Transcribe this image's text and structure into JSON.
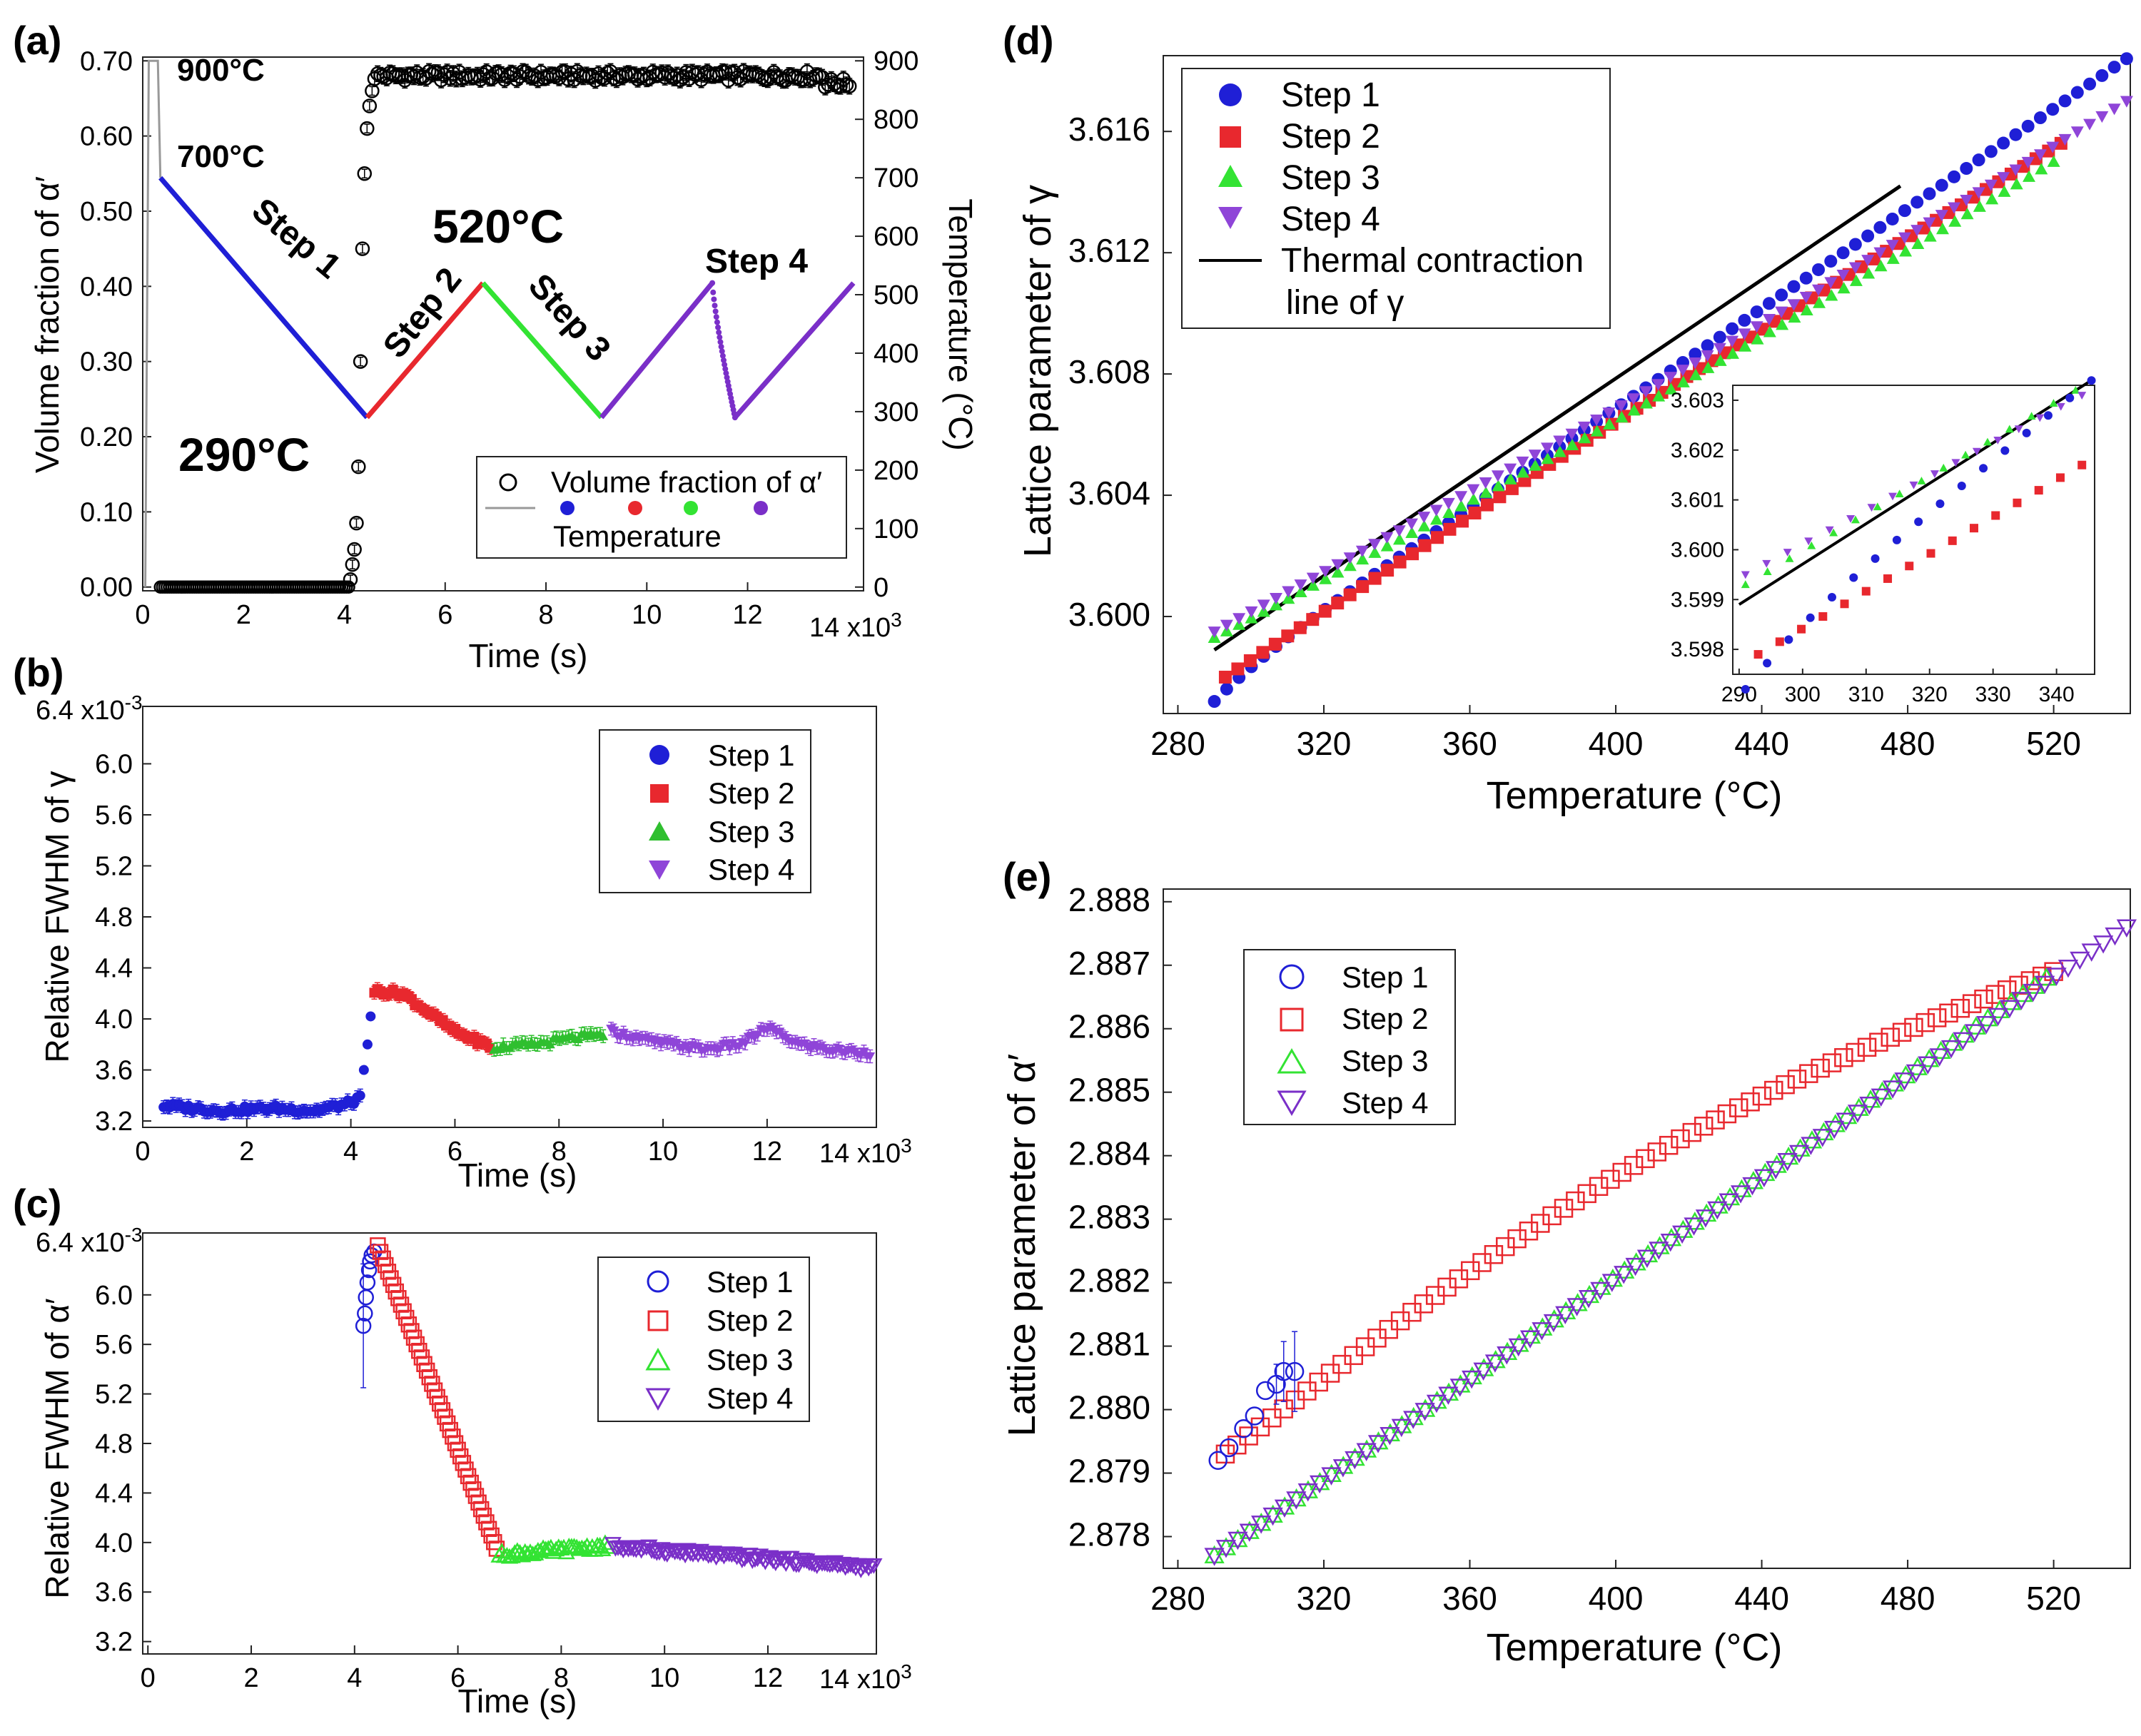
{
  "figure_title": "",
  "chart_data": [
    {
      "id": "a",
      "type": "scatter",
      "panel_label": "(a)",
      "xlabel": "Time (s)",
      "x_multiplier": "14 x10",
      "x_exp": "3",
      "xlim": [
        0,
        14.3
      ],
      "xticks": [
        "0",
        "2",
        "4",
        "6",
        "8",
        "10",
        "12"
      ],
      "ylabel": "Volume fraction of α′",
      "ylim": [
        -0.005,
        0.705
      ],
      "yticks": [
        "0.00",
        "0.10",
        "0.20",
        "0.30",
        "0.40",
        "0.50",
        "0.60",
        "0.70"
      ],
      "y2label": "Temperature (°C)",
      "y2lim": [
        -6.4,
        906.4
      ],
      "y2ticks": [
        "0",
        "100",
        "200",
        "300",
        "400",
        "500",
        "600",
        "700",
        "800",
        "900"
      ],
      "annotations": [
        "900°C",
        "700°C",
        "520°C",
        "290°C",
        "Step 1",
        "Step 2",
        "Step 3",
        "Step 4"
      ],
      "legend": {
        "vf": "Volume fraction of α′",
        "temp": "Temperature"
      },
      "colors": {
        "step1": "#1f1fd6",
        "step2": "#e8282e",
        "step3": "#33e333",
        "step4": "#7a2fc8",
        "templine": "#999999"
      },
      "temperature_segments": [
        {
          "name": "Step 1",
          "x": [
            0.35,
            4.45
          ],
          "y": [
            700,
            290
          ]
        },
        {
          "name": "Step 2",
          "x": [
            4.45,
            6.75
          ],
          "y": [
            290,
            520
          ]
        },
        {
          "name": "Step 3",
          "x": [
            6.75,
            9.1
          ],
          "y": [
            520,
            290
          ]
        },
        {
          "name": "Step 4 (cool)",
          "x": [
            9.1,
            11.3
          ],
          "y": [
            290,
            520
          ]
        },
        {
          "name": "Step 4 (drop)",
          "x": [
            11.3,
            11.75
          ],
          "y": [
            520,
            290
          ]
        },
        {
          "name": "Step 4 (reheat)",
          "x": [
            11.75,
            14.1
          ],
          "y": [
            290,
            520
          ]
        }
      ],
      "initial_heat": {
        "x": [
          0.05,
          0.12,
          0.3,
          0.35
        ],
        "y": [
          0,
          900,
          900,
          700
        ]
      },
      "volume_fraction": {
        "x": [
          4.12,
          4.16,
          4.2,
          4.24,
          4.28,
          4.32,
          4.36,
          4.4,
          4.45,
          4.5,
          4.55
        ],
        "y": [
          0.01,
          0.03,
          0.05,
          0.085,
          0.16,
          0.3,
          0.45,
          0.55,
          0.61,
          0.64,
          0.66
        ],
        "plateau": 0.68,
        "baseline": 0.0
      }
    },
    {
      "id": "b",
      "type": "scatter",
      "panel_label": "(b)",
      "xlabel": "Time (s)",
      "x_multiplier": "14 x10",
      "x_exp": "3",
      "xlim": [
        0,
        14.1
      ],
      "xticks": [
        "0",
        "2",
        "4",
        "6",
        "8",
        "10",
        "12"
      ],
      "ylabel": "Relative FWHM of γ",
      "y_multiplier": "6.4 x10",
      "y_exp": "-3",
      "ylim": [
        3.15,
        6.45
      ],
      "yticks": [
        "3.2",
        "3.6",
        "4.0",
        "4.4",
        "4.8",
        "5.2",
        "5.6",
        "6.0"
      ],
      "legend": [
        "Step 1",
        "Step 2",
        "Step 3",
        "Step 4"
      ],
      "series": [
        {
          "name": "Step 1",
          "color": "#1f1fd6",
          "marker": "circle",
          "segments": [
            [
              0.4,
              3.32
            ],
            [
              1.5,
              3.28
            ],
            [
              2.5,
              3.3
            ],
            [
              3.3,
              3.28
            ],
            [
              3.9,
              3.33
            ],
            [
              4.2,
              3.38
            ]
          ]
        },
        {
          "name": "Step 2",
          "color": "#e8282e",
          "marker": "square",
          "segments": [
            [
              4.45,
              4.22
            ],
            [
              5.0,
              4.2
            ],
            [
              5.5,
              4.05
            ],
            [
              6.0,
              3.9
            ],
            [
              6.7,
              3.78
            ]
          ]
        },
        {
          "name": "Step 3",
          "color": "#2fbf2f",
          "marker": "triangle-up",
          "segments": [
            [
              6.75,
              3.78
            ],
            [
              7.5,
              3.8
            ],
            [
              8.2,
              3.85
            ],
            [
              8.9,
              3.88
            ]
          ]
        },
        {
          "name": "Step 4",
          "color": "#8f45d8",
          "marker": "triangle-down",
          "segments": [
            [
              9.0,
              3.9
            ],
            [
              9.8,
              3.82
            ],
            [
              10.8,
              3.76
            ],
            [
              11.5,
              3.8
            ],
            [
              12.0,
              3.93
            ],
            [
              12.6,
              3.8
            ],
            [
              13.3,
              3.75
            ],
            [
              14.0,
              3.73
            ]
          ]
        }
      ],
      "transition": {
        "x": [
          4.25,
          4.32,
          4.38
        ],
        "y": [
          3.6,
          3.8,
          4.02
        ],
        "color": "#1f1fd6"
      }
    },
    {
      "id": "c",
      "type": "scatter",
      "panel_label": "(c)",
      "xlabel": "Time (s)",
      "x_multiplier": "14 x10",
      "x_exp": "3",
      "xlim": [
        -0.1,
        14.1
      ],
      "xticks": [
        "0",
        "2",
        "4",
        "6",
        "8",
        "10",
        "12"
      ],
      "ylabel": "Relative FWHM of α′",
      "y_multiplier": "6.4 x10",
      "y_exp": "-3",
      "ylim": [
        3.1,
        6.5
      ],
      "yticks": [
        "3.2",
        "3.6",
        "4.0",
        "4.4",
        "4.8",
        "5.2",
        "5.6",
        "6.0"
      ],
      "legend": [
        "Step 1",
        "Step 2",
        "Step 3",
        "Step 4"
      ],
      "series": [
        {
          "name": "Step 1",
          "color": "#1f1fd6",
          "marker": "circle-open",
          "x": [
            4.17,
            4.2,
            4.22,
            4.25,
            4.28,
            4.3,
            4.33,
            4.38
          ],
          "y": [
            5.75,
            5.85,
            5.98,
            6.1,
            6.2,
            6.27,
            6.32,
            6.35
          ]
        },
        {
          "name": "Step 2",
          "color": "#e8282e",
          "marker": "square-open",
          "x0": 4.45,
          "x1": 6.75,
          "y0": 6.4,
          "y1": 3.95
        },
        {
          "name": "Step 3",
          "color": "#33e333",
          "marker": "triangle-up-open",
          "x0": 6.8,
          "x1": 8.9,
          "y0": 3.9,
          "y1": 3.97
        },
        {
          "name": "Step 4",
          "color": "#7a2fc8",
          "marker": "triangle-down-open",
          "x0": 9.0,
          "x1": 14.05,
          "y0": 3.97,
          "y1": 3.8
        }
      ]
    },
    {
      "id": "d",
      "type": "scatter",
      "panel_label": "(d)",
      "xlabel": "Temperature (°C)",
      "xlim": [
        276,
        541
      ],
      "xticks": [
        "280",
        "320",
        "360",
        "400",
        "440",
        "480",
        "520"
      ],
      "ylabel": "Lattice parameter of γ",
      "ylim": [
        3.5968,
        3.6185
      ],
      "yticks": [
        "3.600",
        "3.604",
        "3.608",
        "3.612",
        "3.616"
      ],
      "legend": [
        "Step 1",
        "Step 2",
        "Step 3",
        "Step 4",
        "Thermal contraction",
        "line of γ"
      ],
      "series": [
        {
          "name": "Step 1",
          "color": "#1f1fd6",
          "marker": "circle",
          "x0": 290,
          "x1": 540,
          "y0": 3.5978,
          "y1": 3.6184
        },
        {
          "name": "Step 2",
          "color": "#e8282e",
          "marker": "square",
          "x0": 293,
          "x1": 522,
          "y0": 3.598,
          "y1": 3.6156
        },
        {
          "name": "Step 3",
          "color": "#33e333",
          "marker": "triangle-up",
          "x0": 290,
          "x1": 520,
          "y0": 3.5993,
          "y1": 3.615
        },
        {
          "name": "Step 4",
          "color": "#8f45d8",
          "marker": "triangle-down",
          "x0": 290,
          "x1": 540,
          "y0": 3.5995,
          "y1": 3.617
        },
        {
          "name": "Thermal contraction line of γ",
          "color": "#000000",
          "marker": "line",
          "x0": 290,
          "x1": 478,
          "y0": 3.5989,
          "y1": 3.6142
        }
      ],
      "inset": {
        "xlim": [
          289,
          346
        ],
        "xticks": [
          "290",
          "300",
          "310",
          "320",
          "330",
          "340"
        ],
        "ylim": [
          3.5975,
          3.6033
        ],
        "yticks": [
          "3.598",
          "3.599",
          "3.600",
          "3.601",
          "3.602",
          "3.603"
        ]
      }
    },
    {
      "id": "e",
      "type": "scatter",
      "panel_label": "(e)",
      "xlabel": "Temperature (°C)",
      "xlim": [
        276,
        541
      ],
      "xticks": [
        "280",
        "320",
        "360",
        "400",
        "440",
        "480",
        "520"
      ],
      "ylabel": "Lattice parameter of α′",
      "ylim": [
        2.8775,
        2.8882
      ],
      "yticks": [
        "2.878",
        "2.879",
        "2.880",
        "2.881",
        "2.882",
        "2.883",
        "2.884",
        "2.885",
        "2.886",
        "2.887",
        "2.888"
      ],
      "legend": [
        "Step 1",
        "Step 2",
        "Step 3",
        "Step 4"
      ],
      "series": [
        {
          "name": "Step 1",
          "color": "#1f1fd6",
          "marker": "circle-open",
          "x": [
            291,
            294,
            298,
            301,
            304,
            307,
            309,
            312
          ],
          "y": [
            2.8792,
            2.8794,
            2.8797,
            2.8799,
            2.8803,
            2.8804,
            2.8806,
            2.8806
          ]
        },
        {
          "name": "Step 2",
          "color": "#e8282e",
          "marker": "square-open",
          "x0": 293,
          "x1": 520,
          "y0": 2.8793,
          "y1": 2.8869
        },
        {
          "name": "Step 3",
          "color": "#33e333",
          "marker": "triangle-up-open",
          "x0": 290,
          "x1": 518,
          "y0": 2.8777,
          "y1": 2.8868
        },
        {
          "name": "Step 4",
          "color": "#7a2fc8",
          "marker": "triangle-down-open",
          "x0": 290,
          "x1": 540,
          "y0": 2.8777,
          "y1": 2.8876
        }
      ]
    }
  ]
}
